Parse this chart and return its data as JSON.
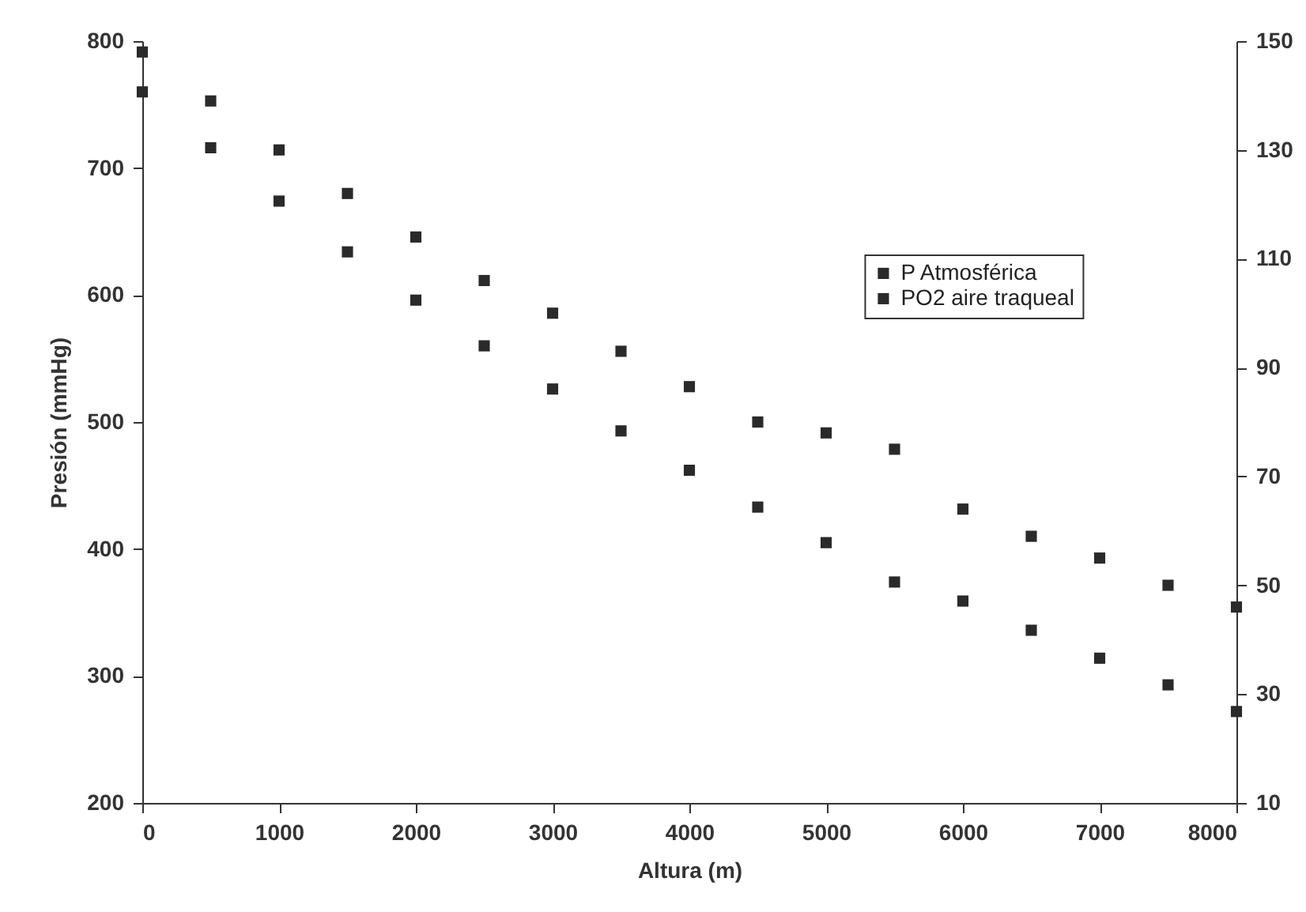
{
  "chart_data": {
    "type": "scatter",
    "xlabel": "Altura (m)",
    "ylabel": "Presión (mmHg)",
    "x": [
      0,
      500,
      1000,
      1500,
      2000,
      2500,
      3000,
      3500,
      4000,
      4500,
      5000,
      5500,
      6000,
      6500,
      7000,
      7500,
      8000
    ],
    "series": [
      {
        "name": "P Atmosférica",
        "color": "#2a2a2a",
        "values": [
          760,
          716,
          674,
          634,
          596,
          560,
          526,
          493,
          462,
          433,
          405,
          374,
          359,
          336,
          314,
          293,
          272
        ]
      },
      {
        "name": "PO2 aire traqueal",
        "color": "#2a2a2a",
        "axis": "y2",
        "values": [
          148,
          139,
          130,
          122,
          114,
          106,
          100,
          93,
          86.5,
          80,
          78,
          75,
          64,
          59,
          55,
          50,
          46
        ]
      }
    ],
    "xlim": [
      0,
      8000
    ],
    "xticks": [
      0,
      1000,
      2000,
      3000,
      4000,
      5000,
      6000,
      7000,
      8000
    ],
    "ylim": [
      200,
      800
    ],
    "yticks": [
      200,
      300,
      400,
      500,
      600,
      700,
      800
    ],
    "y2lim": [
      10,
      150
    ],
    "y2ticks": [
      10,
      30,
      50,
      70,
      90,
      110,
      130,
      150
    ],
    "grid": false,
    "legend": "top right",
    "marker": "square"
  }
}
